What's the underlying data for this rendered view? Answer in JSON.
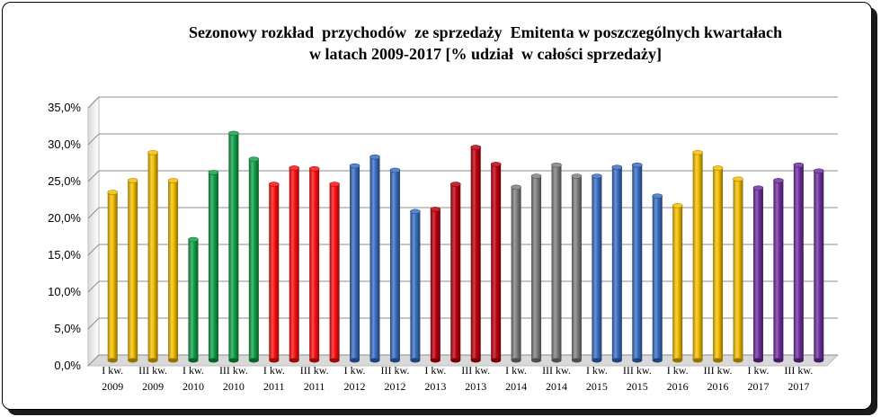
{
  "chart_data": {
    "type": "bar",
    "title_lines": [
      "Sezonowy rozkład  przychodów  ze sprzedaży  Emitenta w poszczególnych kwartałach",
      "w latach 2009-2017 [% udział  w całości sprzedaży]"
    ],
    "ylim": [
      0,
      35
    ],
    "yticks": [
      0,
      5,
      10,
      15,
      20,
      25,
      30,
      35
    ],
    "ytick_labels": [
      "0,0%",
      "5,0%",
      "10,0%",
      "15,0%",
      "20,0%",
      "25,0%",
      "30,0%",
      "35,0%"
    ],
    "grid": true,
    "categories": [
      "I kw. 2009",
      "II kw. 2009",
      "III kw. 2009",
      "IV kw. 2009",
      "I kw. 2010",
      "II kw. 2010",
      "III kw. 2010",
      "IV kw. 2010",
      "I kw. 2011",
      "II kw. 2011",
      "III kw. 2011",
      "IV kw. 2011",
      "I kw. 2012",
      "II kw. 2012",
      "III kw. 2012",
      "IV kw. 2012",
      "I kw. 2013",
      "II kw. 2013",
      "III kw. 2013",
      "IV kw. 2013",
      "I kw. 2014",
      "II kw. 2014",
      "III kw. 2014",
      "IV kw. 2014",
      "I kw. 2015",
      "II kw. 2015",
      "III kw. 2015",
      "IV kw. 2015",
      "I kw. 2016",
      "II kw. 2016",
      "III kw. 2016",
      "IV kw. 2016",
      "I kw. 2017",
      "II kw. 2017",
      "III kw. 2017",
      "IV kw. 2017"
    ],
    "shown_labels": [
      {
        "index": 0,
        "line1": "I kw.",
        "line2": "2009"
      },
      {
        "index": 2,
        "line1": "III kw.",
        "line2": "2009"
      },
      {
        "index": 4,
        "line1": "I kw.",
        "line2": "2010"
      },
      {
        "index": 6,
        "line1": "III kw.",
        "line2": "2010"
      },
      {
        "index": 8,
        "line1": "I kw.",
        "line2": "2011"
      },
      {
        "index": 10,
        "line1": "III kw.",
        "line2": "2011"
      },
      {
        "index": 12,
        "line1": "I kw.",
        "line2": "2012"
      },
      {
        "index": 14,
        "line1": "III kw.",
        "line2": "2012"
      },
      {
        "index": 16,
        "line1": "I kw.",
        "line2": "2013"
      },
      {
        "index": 18,
        "line1": "III kw.",
        "line2": "2013"
      },
      {
        "index": 20,
        "line1": "I kw.",
        "line2": "2014"
      },
      {
        "index": 22,
        "line1": "III kw.",
        "line2": "2014"
      },
      {
        "index": 24,
        "line1": "I kw.",
        "line2": "2015"
      },
      {
        "index": 26,
        "line1": "III kw.",
        "line2": "2015"
      },
      {
        "index": 28,
        "line1": "I kw.",
        "line2": "2016"
      },
      {
        "index": 30,
        "line1": "III kw.",
        "line2": "2016"
      },
      {
        "index": 32,
        "line1": "I kw.",
        "line2": "2017"
      },
      {
        "index": 34,
        "line1": "III kw.",
        "line2": "2017"
      }
    ],
    "values": [
      22.8,
      24.4,
      28.2,
      24.4,
      16.4,
      25.5,
      30.8,
      27.3,
      23.9,
      26.1,
      26.0,
      23.9,
      26.4,
      27.6,
      25.8,
      20.2,
      20.5,
      23.9,
      28.9,
      26.6,
      23.5,
      25.0,
      26.5,
      25.0,
      25.0,
      26.2,
      26.5,
      22.3,
      21.0,
      28.2,
      26.1,
      24.6,
      23.4,
      24.4,
      26.5,
      25.7
    ],
    "year_colors": [
      "#f5c000",
      "#12a24a",
      "#ff1010",
      "#3b6fc4",
      "#c0000f",
      "#808080",
      "#3b6fc4",
      "#f5c000",
      "#7030a0"
    ],
    "bar_style": "3d-cylinder"
  }
}
